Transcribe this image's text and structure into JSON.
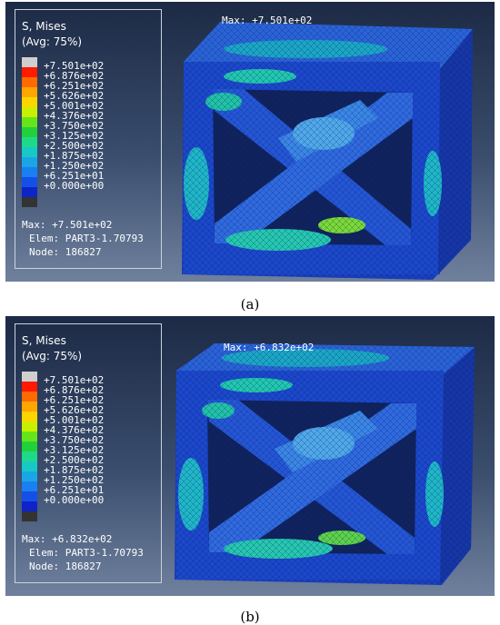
{
  "legend_colors": [
    "#cfcfcf",
    "#ff1a00",
    "#ff6a00",
    "#ffa500",
    "#ffd500",
    "#c8f000",
    "#66e51a",
    "#22d13a",
    "#1ed98a",
    "#16c9c6",
    "#1aa6e6",
    "#1a7ff0",
    "#1450e8",
    "#0c24c8",
    "#333333"
  ],
  "panels": [
    {
      "legend": {
        "title": "S, Mises",
        "subtitle": "(Avg: 75%)",
        "values": [
          "+7.501e+02",
          "+6.876e+02",
          "+6.251e+02",
          "+5.626e+02",
          "+5.001e+02",
          "+4.376e+02",
          "+3.750e+02",
          "+3.125e+02",
          "+2.500e+02",
          "+1.875e+02",
          "+1.250e+02",
          "+6.251e+01",
          "+0.000e+00"
        ]
      },
      "info": {
        "max": "Max: +7.501e+02",
        "elem": "Elem: PART3-1.70793",
        "node": "Node: 186827"
      },
      "max_label": "Max: +7.501e+02",
      "caption": "(a)"
    },
    {
      "legend": {
        "title": "S, Mises",
        "subtitle": "(Avg: 75%)",
        "values": [
          "+7.501e+02",
          "+6.876e+02",
          "+6.251e+02",
          "+5.626e+02",
          "+5.001e+02",
          "+4.376e+02",
          "+3.750e+02",
          "+3.125e+02",
          "+2.500e+02",
          "+1.875e+02",
          "+1.250e+02",
          "+6.251e+01",
          "+0.000e+00"
        ]
      },
      "info": {
        "max": "Max: +6.832e+02",
        "elem": "Elem: PART3-1.70793",
        "node": "Node: 186827"
      },
      "max_label": "Max: +6.832e+02",
      "caption": "(b)"
    }
  ]
}
